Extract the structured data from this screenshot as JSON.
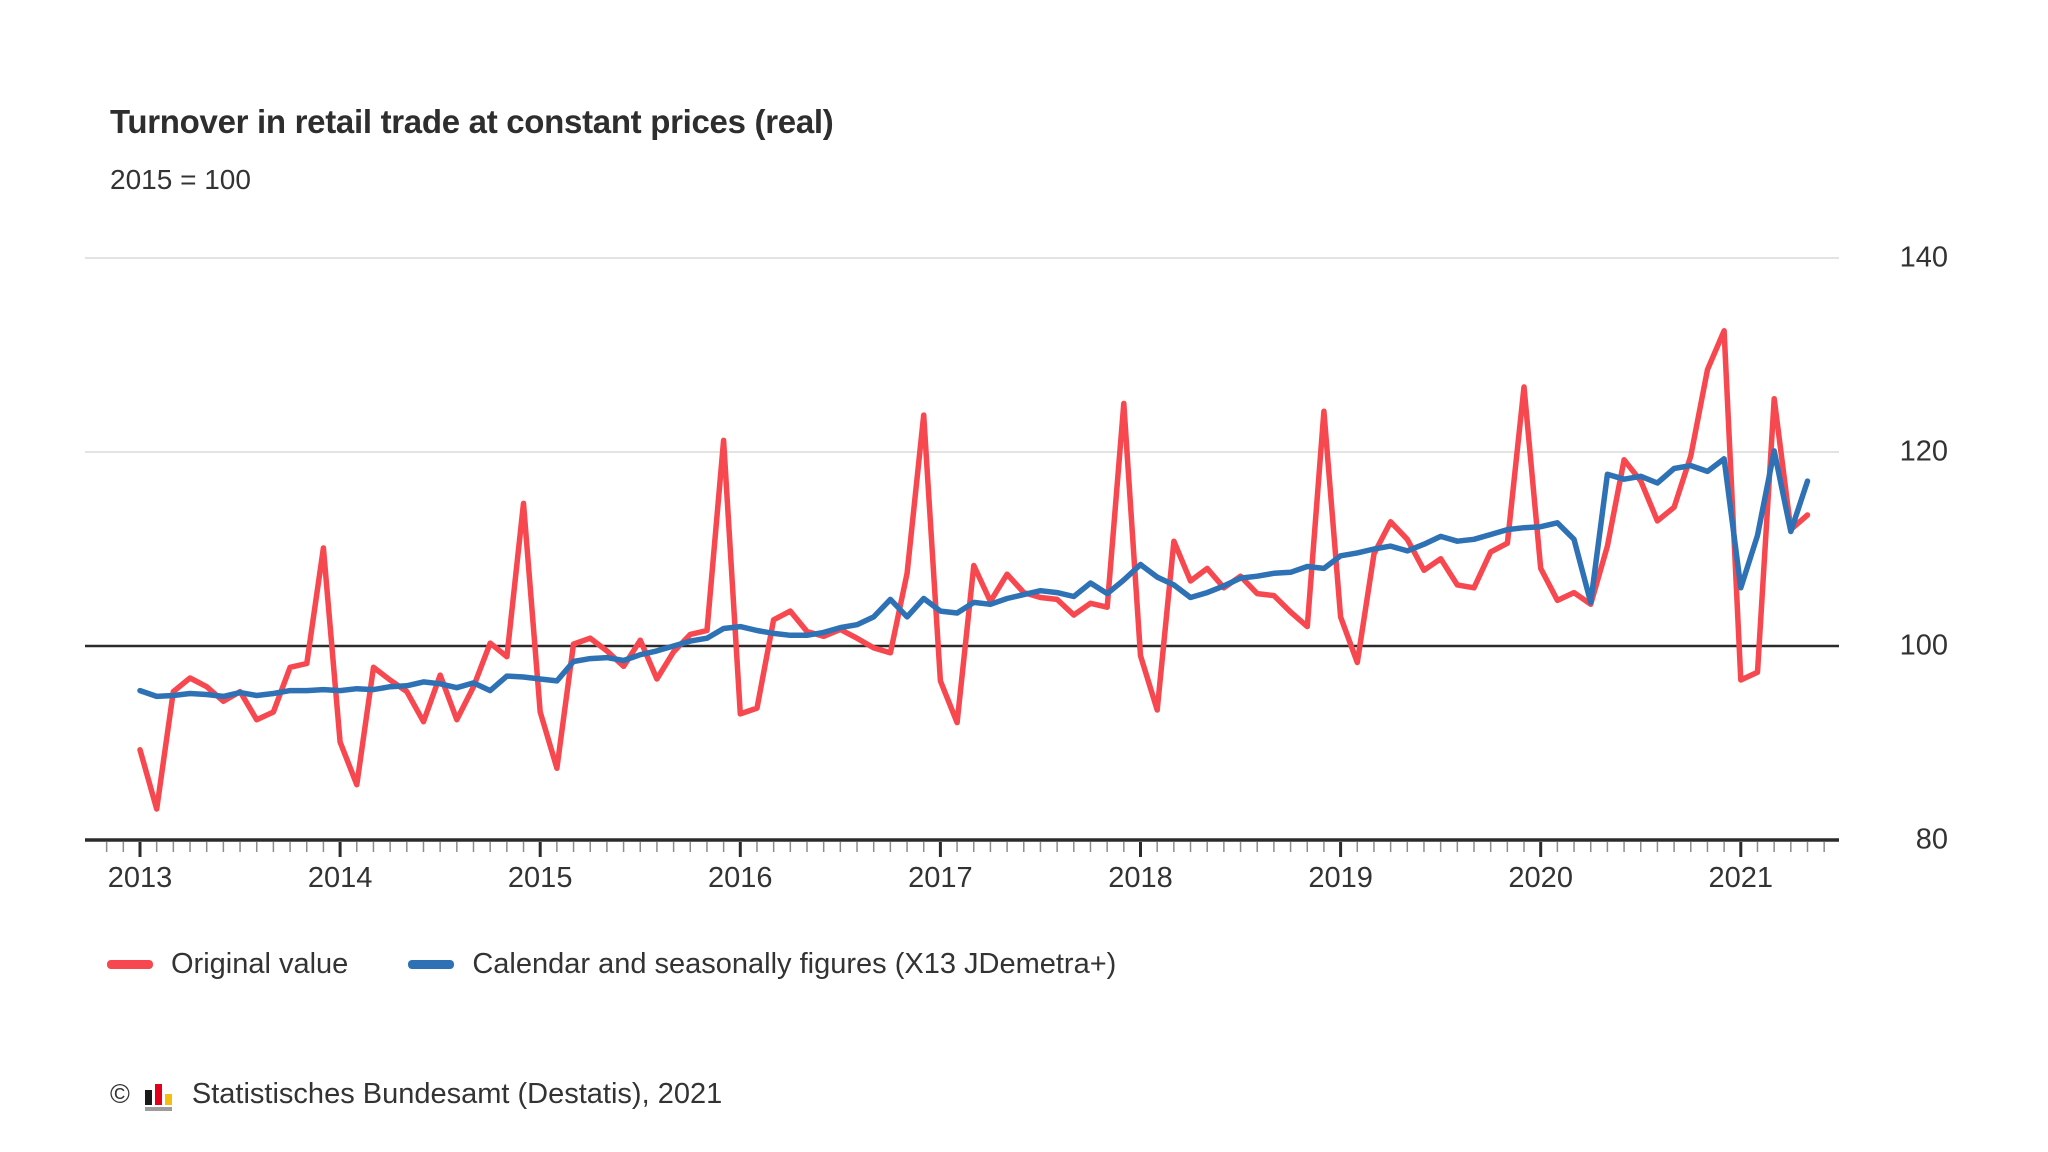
{
  "header": {
    "title": "Turnover in retail trade at constant prices (real)",
    "subtitle": "2015 = 100"
  },
  "chart_data": {
    "type": "line",
    "title": "Turnover in retail trade at constant prices (real)",
    "subtitle": "2015 = 100",
    "x_unit": "month",
    "x_start": "2013-01",
    "x_end": "2021-05",
    "year_labels": [
      "2013",
      "2014",
      "2015",
      "2016",
      "2017",
      "2018",
      "2019",
      "2020",
      "2021"
    ],
    "ylim": [
      80,
      140
    ],
    "yticks": [
      140,
      120,
      100,
      80
    ],
    "reference_line": 100,
    "grid": "horizontal",
    "legend_position": "bottom",
    "series": [
      {
        "name": "Original value",
        "color": "#F8484F",
        "values": [
          89.3,
          83.2,
          95.3,
          96.7,
          95.8,
          94.3,
          95.3,
          92.4,
          93.2,
          97.8,
          98.2,
          110.1,
          90.1,
          85.7,
          97.8,
          96.5,
          95.3,
          92.2,
          97.0,
          92.4,
          95.8,
          100.3,
          98.9,
          114.7,
          93.2,
          87.4,
          100.2,
          100.8,
          99.5,
          97.9,
          100.6,
          96.6,
          99.4,
          101.2,
          101.6,
          121.2,
          93.0,
          93.6,
          102.7,
          103.6,
          101.5,
          101.0,
          101.7,
          100.8,
          99.8,
          99.3,
          107.5,
          123.8,
          96.4,
          92.1,
          108.3,
          104.6,
          107.4,
          105.5,
          105.0,
          104.8,
          103.2,
          104.4,
          104.0,
          125.0,
          99.0,
          93.4,
          110.8,
          106.7,
          108.0,
          106.0,
          107.2,
          105.4,
          105.2,
          103.5,
          102.0,
          124.2,
          103.0,
          98.3,
          109.5,
          112.8,
          111.0,
          107.8,
          109.0,
          106.3,
          106.0,
          109.7,
          110.6,
          126.7,
          108.0,
          104.7,
          105.5,
          104.3,
          110.3,
          119.2,
          117.0,
          112.9,
          114.3,
          119.6,
          128.5,
          132.5,
          96.5,
          97.3,
          125.5,
          112.0,
          113.5
        ]
      },
      {
        "name": "Calendar and seasonally figures (X13 JDemetra+)",
        "color": "#2E72B5",
        "values": [
          95.4,
          94.8,
          94.9,
          95.1,
          95.0,
          94.8,
          95.2,
          94.9,
          95.1,
          95.4,
          95.4,
          95.5,
          95.4,
          95.6,
          95.5,
          95.8,
          95.9,
          96.3,
          96.1,
          95.7,
          96.2,
          95.4,
          96.9,
          96.8,
          96.6,
          96.4,
          98.4,
          98.7,
          98.8,
          98.5,
          99.1,
          99.5,
          100.0,
          100.5,
          100.8,
          101.8,
          102.0,
          101.6,
          101.3,
          101.1,
          101.1,
          101.4,
          101.9,
          102.2,
          103.0,
          104.8,
          103.0,
          104.9,
          103.6,
          103.4,
          104.5,
          104.3,
          104.9,
          105.3,
          105.7,
          105.5,
          105.1,
          106.5,
          105.4,
          106.8,
          108.4,
          107.1,
          106.3,
          105.0,
          105.5,
          106.2,
          107.0,
          107.2,
          107.5,
          107.6,
          108.2,
          108.0,
          109.3,
          109.6,
          110.0,
          110.3,
          109.8,
          110.5,
          111.3,
          110.8,
          111.0,
          111.5,
          112.0,
          112.2,
          112.3,
          112.7,
          111.0,
          104.5,
          117.7,
          117.2,
          117.5,
          116.8,
          118.3,
          118.6,
          118.0,
          119.3,
          106.0,
          111.4,
          120.1,
          111.8,
          117.0
        ]
      }
    ]
  },
  "legend": {
    "items": [
      {
        "label": "Original value",
        "color": "#F8484F"
      },
      {
        "label": "Calendar and seasonally figures (X13 JDemetra+)",
        "color": "#2E72B5"
      }
    ]
  },
  "footer": {
    "copyright": "©",
    "source": "Statistisches Bundesamt (Destatis), 2021"
  },
  "style": {
    "grid_color": "#dadada",
    "axis_color": "#2b2b2b",
    "minor_tick_color": "#8c8c8c",
    "text_color": "#333333"
  }
}
